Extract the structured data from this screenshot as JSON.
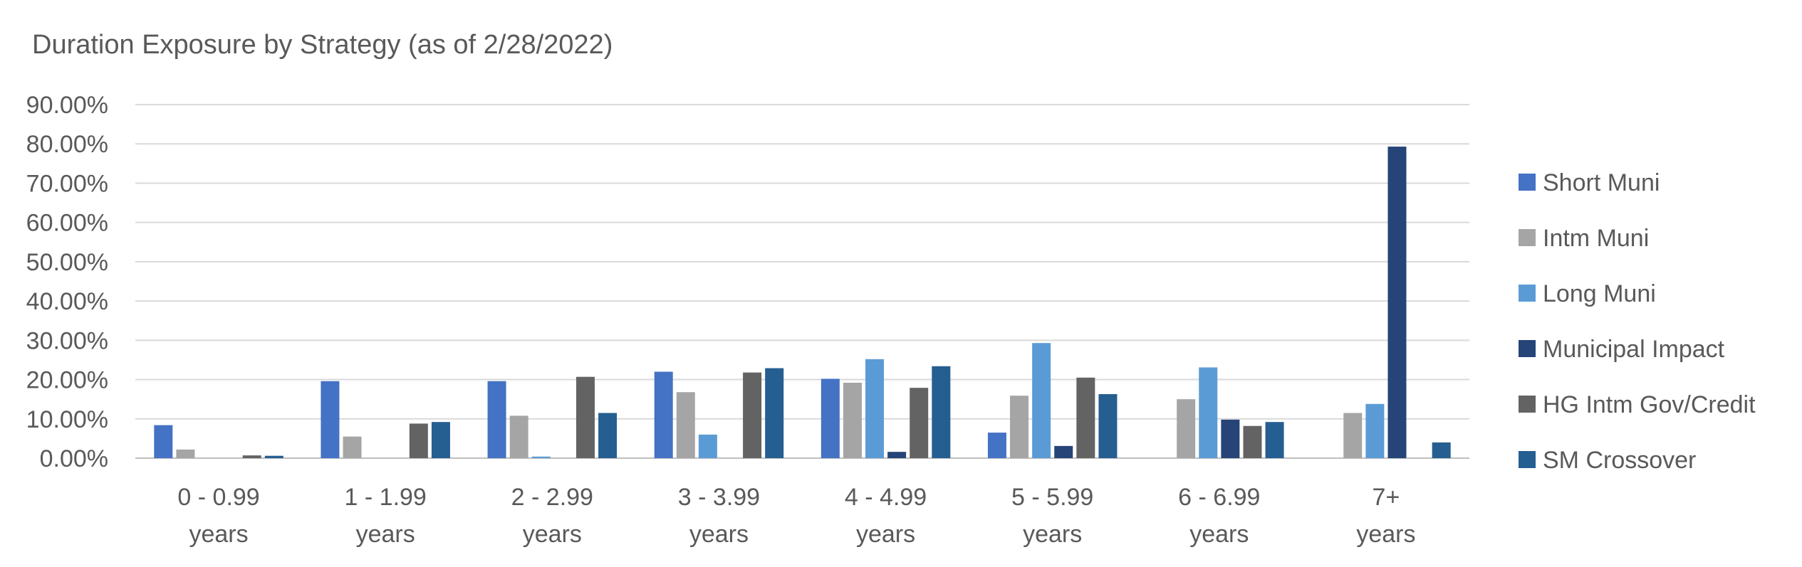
{
  "chart_data": {
    "type": "bar",
    "title": "Duration Exposure by Strategy (as of 2/28/2022)",
    "xlabel": "",
    "ylabel": "",
    "ylim": [
      0,
      90
    ],
    "yticks": [
      "0.00%",
      "10.00%",
      "20.00%",
      "30.00%",
      "40.00%",
      "50.00%",
      "60.00%",
      "70.00%",
      "80.00%",
      "90.00%"
    ],
    "grid": true,
    "legend_position": "right",
    "categories": [
      [
        "0 - 0.99",
        "years"
      ],
      [
        "1 - 1.99",
        "years"
      ],
      [
        "2 - 2.99",
        "years"
      ],
      [
        "3 - 3.99",
        "years"
      ],
      [
        "4 - 4.99",
        "years"
      ],
      [
        "5 - 5.99",
        "years"
      ],
      [
        "6 - 6.99",
        "years"
      ],
      [
        "7+",
        "years"
      ]
    ],
    "series": [
      {
        "name": "Short Muni",
        "color": "#4472C4",
        "values": [
          8.4,
          19.6,
          19.6,
          22.0,
          20.2,
          6.5,
          0.0,
          0.0
        ]
      },
      {
        "name": "Intm Muni",
        "color": "#A5A5A5",
        "values": [
          2.2,
          5.5,
          10.8,
          16.8,
          19.2,
          15.9,
          15.0,
          11.5
        ]
      },
      {
        "name": "Long Muni",
        "color": "#5B9BD5",
        "values": [
          0.0,
          0.0,
          0.4,
          6.0,
          25.2,
          29.3,
          23.1,
          13.8
        ]
      },
      {
        "name": "Municipal Impact",
        "color": "#264478",
        "values": [
          0.0,
          0.0,
          0.0,
          0.0,
          1.6,
          3.1,
          9.8,
          79.3
        ]
      },
      {
        "name": "HG Intm Gov/Credit",
        "color": "#636363",
        "values": [
          0.7,
          8.8,
          20.7,
          21.8,
          17.9,
          20.5,
          8.2,
          0.0
        ]
      },
      {
        "name": "SM Crossover",
        "color": "#255E91",
        "values": [
          0.6,
          9.2,
          11.5,
          22.9,
          23.4,
          16.3,
          9.2,
          4.0
        ]
      }
    ]
  }
}
